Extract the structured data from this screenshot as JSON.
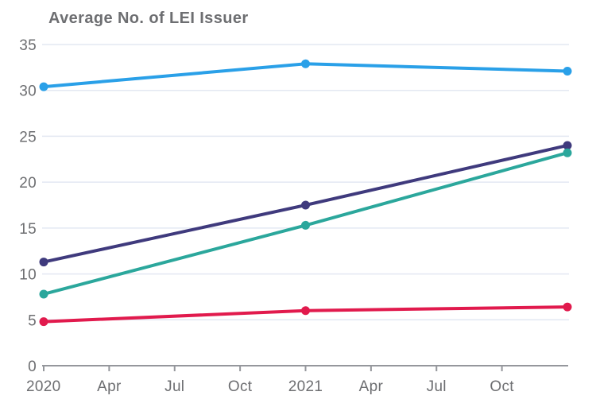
{
  "title": "Average No. of LEI Issuer",
  "colors": {
    "title_text": "#6d6e71",
    "tick_text": "#6d6e71",
    "gridline": "#e3e8f2",
    "axis_line": "#95979c",
    "background": "#ffffff"
  },
  "chart_data": {
    "type": "line",
    "title": "Average No. of LEI Issuer",
    "xlabel": "",
    "ylabel": "",
    "x_tick_labels": [
      "2020",
      "Apr",
      "Jul",
      "Oct",
      "2021",
      "Apr",
      "Jul",
      "Oct"
    ],
    "y_ticks": [
      0,
      5,
      10,
      15,
      20,
      25,
      30,
      35
    ],
    "ylim": [
      0,
      35
    ],
    "grid": true,
    "legend_position": "none",
    "note": "each series has 3 points: start of 2020, start of 2021, and the right end of the axis (one year after 2021)",
    "x_point_tick_indices": [
      0,
      4,
      8
    ],
    "series": [
      {
        "name": "light-blue-line",
        "color": "#2aa0e8",
        "values": [
          30.4,
          32.9,
          32.1
        ]
      },
      {
        "name": "indigo-line",
        "color": "#3f3a7d",
        "values": [
          11.3,
          17.5,
          24.0
        ]
      },
      {
        "name": "teal-line",
        "color": "#2ba79c",
        "values": [
          7.8,
          15.3,
          23.2
        ]
      },
      {
        "name": "crimson-line",
        "color": "#e11a4d",
        "values": [
          4.8,
          6.0,
          6.4
        ]
      }
    ]
  }
}
